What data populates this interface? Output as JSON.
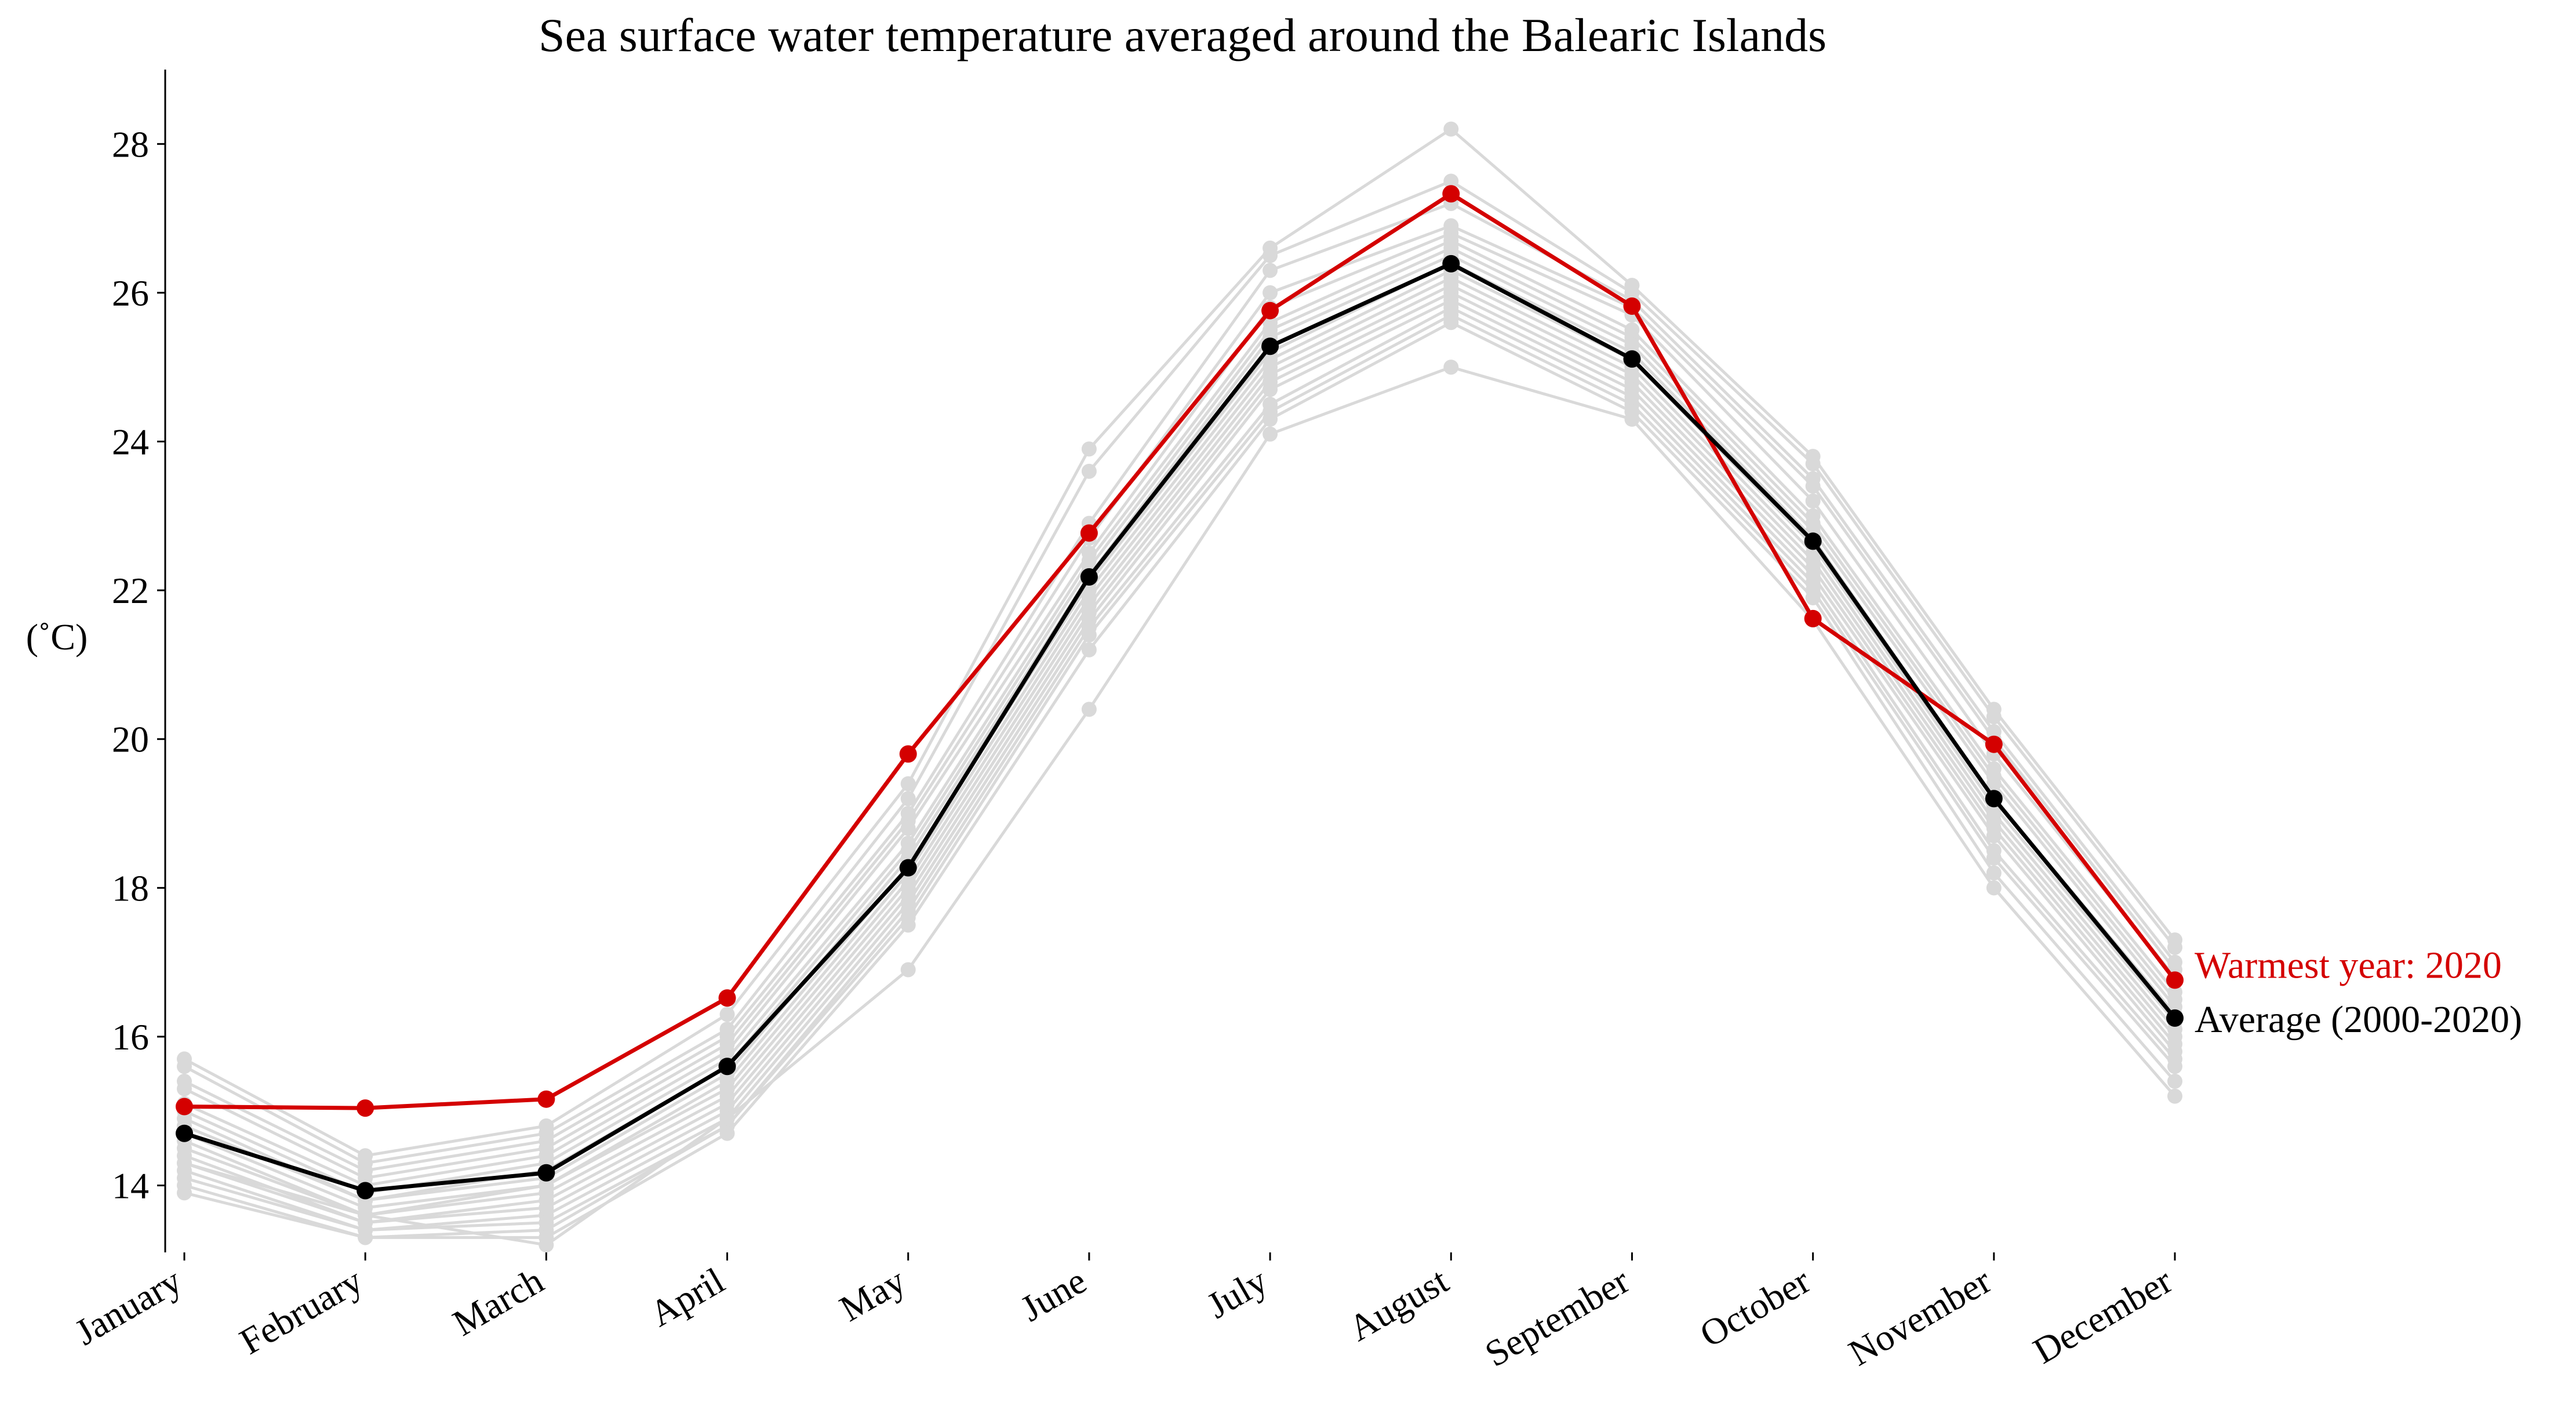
{
  "chart_data": {
    "type": "line",
    "title": "Sea surface water temperature averaged around the Balearic Islands",
    "xlabel": "",
    "ylabel": "(˚C)",
    "x_categories": [
      "January",
      "February",
      "March",
      "April",
      "May",
      "June",
      "July",
      "August",
      "September",
      "October",
      "November",
      "December"
    ],
    "y_ticks": [
      14,
      16,
      18,
      20,
      22,
      24,
      26,
      28
    ],
    "ylim": [
      13.1,
      29.0
    ],
    "grid": false,
    "colors": {
      "background_years": "#d9d9d9",
      "warmest": "#d40000",
      "average": "#000000"
    },
    "background_series": [
      {
        "values": [
          15.7,
          14.4,
          14.8,
          16.3,
          19.4,
          23.9,
          26.6,
          28.2,
          26.1,
          23.8,
          20.4,
          17.3
        ]
      },
      {
        "values": [
          15.6,
          14.3,
          14.7,
          16.1,
          19.2,
          23.6,
          26.5,
          27.5,
          26.0,
          23.7,
          20.3,
          17.2
        ]
      },
      {
        "values": [
          15.4,
          14.2,
          14.6,
          16.0,
          19.0,
          22.9,
          26.3,
          27.2,
          25.9,
          23.5,
          20.1,
          17.0
        ]
      },
      {
        "values": [
          15.3,
          14.1,
          14.5,
          15.9,
          18.9,
          22.7,
          26.0,
          26.9,
          25.8,
          23.4,
          20.0,
          16.9
        ]
      },
      {
        "values": [
          15.1,
          14.0,
          14.4,
          15.8,
          18.8,
          22.5,
          25.8,
          26.8,
          25.7,
          23.2,
          19.8,
          16.8
        ]
      },
      {
        "values": [
          15.0,
          13.9,
          14.3,
          15.7,
          18.6,
          22.4,
          25.6,
          26.7,
          25.5,
          23.0,
          19.6,
          16.6
        ]
      },
      {
        "values": [
          14.9,
          13.8,
          14.2,
          15.6,
          18.5,
          22.3,
          25.5,
          26.6,
          25.4,
          22.9,
          19.5,
          16.5
        ]
      },
      {
        "values": [
          14.8,
          13.8,
          14.1,
          15.5,
          18.4,
          22.2,
          25.4,
          26.5,
          25.3,
          22.8,
          19.4,
          16.4
        ]
      },
      {
        "values": [
          14.7,
          13.7,
          14.0,
          15.4,
          18.3,
          22.1,
          25.2,
          26.4,
          25.2,
          22.7,
          19.2,
          16.3
        ]
      },
      {
        "values": [
          14.6,
          13.6,
          14.0,
          15.3,
          18.2,
          22.0,
          25.1,
          26.3,
          25.1,
          22.6,
          19.1,
          16.2
        ]
      },
      {
        "values": [
          14.5,
          13.6,
          13.9,
          15.2,
          18.1,
          21.9,
          25.0,
          26.2,
          25.0,
          22.5,
          19.0,
          16.1
        ]
      },
      {
        "values": [
          14.4,
          13.5,
          13.8,
          15.1,
          18.0,
          21.8,
          24.9,
          26.1,
          24.9,
          22.4,
          18.9,
          16.0
        ]
      },
      {
        "values": [
          14.3,
          13.5,
          13.7,
          15.0,
          17.9,
          21.7,
          24.8,
          26.0,
          24.8,
          22.3,
          18.8,
          15.9
        ]
      },
      {
        "values": [
          14.2,
          13.4,
          13.6,
          14.9,
          17.8,
          21.6,
          24.7,
          25.9,
          24.7,
          22.2,
          18.7,
          15.8
        ]
      },
      {
        "values": [
          14.1,
          13.4,
          13.5,
          14.8,
          17.7,
          21.5,
          24.5,
          25.8,
          24.6,
          22.1,
          18.5,
          15.7
        ]
      },
      {
        "values": [
          14.0,
          13.3,
          13.4,
          14.8,
          17.6,
          21.4,
          24.4,
          25.7,
          24.5,
          22.0,
          18.4,
          15.6
        ]
      },
      {
        "values": [
          13.9,
          13.3,
          13.3,
          14.7,
          17.5,
          21.2,
          24.3,
          25.6,
          24.4,
          21.9,
          18.2,
          15.4
        ]
      },
      {
        "values": [
          14.3,
          13.6,
          13.2,
          14.9,
          16.9,
          20.4,
          24.1,
          25.0,
          24.3,
          21.6,
          18.0,
          15.2
        ]
      }
    ],
    "series": [
      {
        "name": "Warmest year: 2020",
        "color": "#d40000",
        "values": [
          15.06,
          15.04,
          15.16,
          16.52,
          19.8,
          22.77,
          25.76,
          27.33,
          25.82,
          21.62,
          19.93,
          16.76
        ]
      },
      {
        "name": "Average (2000-2020)",
        "color": "#000000",
        "values": [
          14.7,
          13.93,
          14.17,
          15.6,
          18.27,
          22.18,
          25.28,
          26.39,
          25.11,
          22.66,
          19.2,
          16.25
        ]
      }
    ]
  }
}
